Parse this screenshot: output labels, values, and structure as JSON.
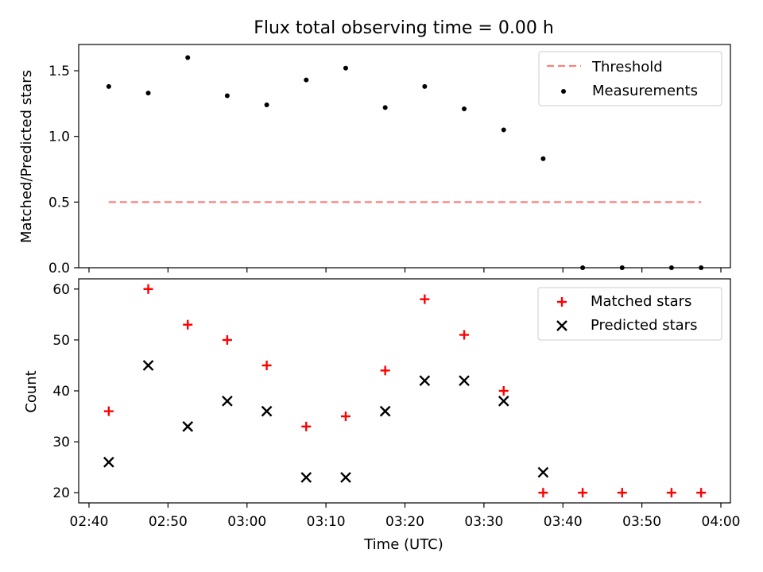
{
  "chart_data": [
    {
      "type": "scatter",
      "title": "Flux total observing time = 0.00 h",
      "xlabel": "",
      "ylabel": "Matched/Predicted stars",
      "ylim": [
        0.0,
        1.7
      ],
      "yticks": [
        "0.0",
        "0.5",
        "1.0",
        "1.5"
      ],
      "legend_position": "top-right",
      "threshold": {
        "name": "Threshold",
        "value": 0.5,
        "x_start": "02:42:30",
        "x_end": "03:57:30",
        "color": "#ff7f7f",
        "style": "dashed"
      },
      "series": [
        {
          "name": "Measurements",
          "color": "#000000",
          "marker": "dot",
          "x": [
            "02:42:30",
            "02:47:30",
            "02:52:30",
            "02:57:30",
            "03:02:30",
            "03:07:30",
            "03:12:30",
            "03:17:30",
            "03:22:30",
            "03:27:30",
            "03:32:30",
            "03:37:30",
            "03:42:30",
            "03:47:30",
            "03:53:45",
            "03:57:30"
          ],
          "y": [
            1.38,
            1.33,
            1.6,
            1.31,
            1.24,
            1.43,
            1.52,
            1.22,
            1.38,
            1.21,
            1.05,
            0.83,
            0.0,
            0.0,
            0.0,
            0.0
          ]
        }
      ]
    },
    {
      "type": "scatter",
      "xlabel": "Time (UTC)",
      "ylabel": "Count",
      "ylim": [
        18,
        62
      ],
      "yticks": [
        "20",
        "30",
        "40",
        "50",
        "60"
      ],
      "xticks": [
        "02:40",
        "02:50",
        "03:00",
        "03:10",
        "03:20",
        "03:30",
        "03:40",
        "03:50",
        "04:00"
      ],
      "legend_position": "top-right",
      "series": [
        {
          "name": "Matched stars",
          "color": "#ff0000",
          "marker": "plus",
          "x": [
            "02:42:30",
            "02:47:30",
            "02:52:30",
            "02:57:30",
            "03:02:30",
            "03:07:30",
            "03:12:30",
            "03:17:30",
            "03:22:30",
            "03:27:30",
            "03:32:30",
            "03:37:30",
            "03:42:30",
            "03:47:30",
            "03:53:45",
            "03:57:30"
          ],
          "y": [
            36,
            60,
            53,
            50,
            45,
            33,
            35,
            44,
            58,
            51,
            40,
            20,
            20,
            20,
            20,
            20
          ]
        },
        {
          "name": "Predicted stars",
          "color": "#000000",
          "marker": "x",
          "x": [
            "02:42:30",
            "02:47:30",
            "02:52:30",
            "02:57:30",
            "03:02:30",
            "03:07:30",
            "03:12:30",
            "03:17:30",
            "03:22:30",
            "03:27:30",
            "03:32:30",
            "03:37:30"
          ],
          "y": [
            26,
            45,
            33,
            38,
            36,
            23,
            23,
            36,
            42,
            42,
            38,
            24
          ]
        }
      ]
    }
  ]
}
